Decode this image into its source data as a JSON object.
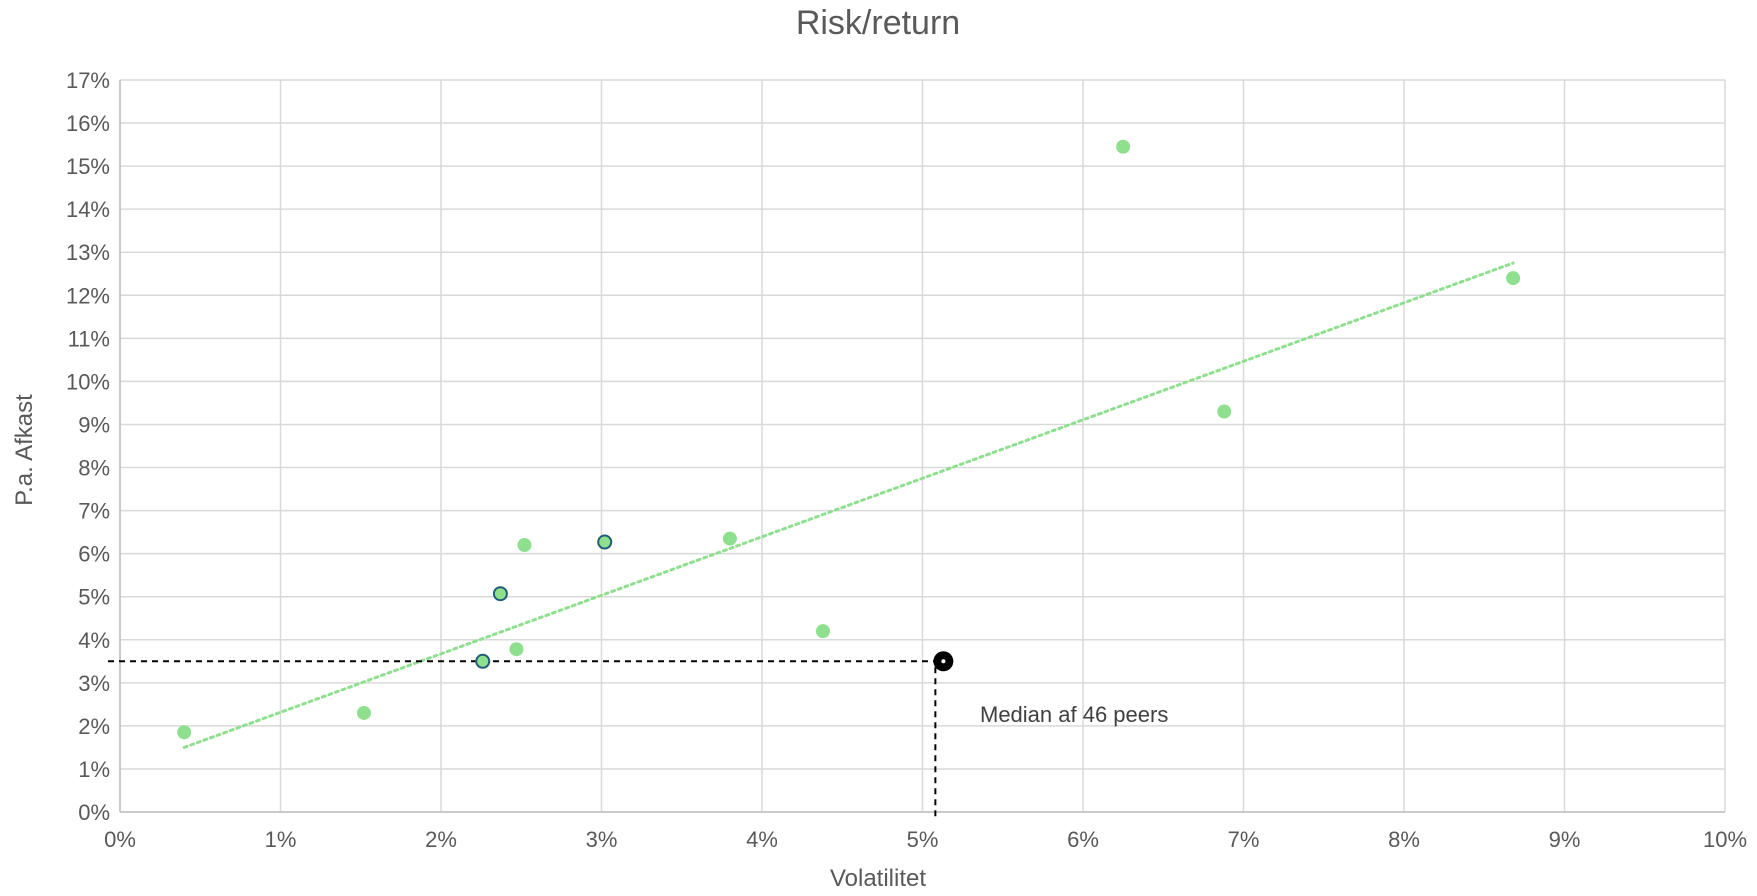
{
  "chart_data": {
    "type": "scatter",
    "title": "Risk/return",
    "xlabel": "Volatilitet",
    "ylabel": "P.a. Afkast",
    "xlim": [
      0,
      10
    ],
    "ylim": [
      0,
      17
    ],
    "x_ticks": [
      "0%",
      "1%",
      "2%",
      "3%",
      "4%",
      "5%",
      "6%",
      "7%",
      "8%",
      "9%",
      "10%"
    ],
    "y_ticks": [
      "0%",
      "1%",
      "2%",
      "3%",
      "4%",
      "5%",
      "6%",
      "7%",
      "8%",
      "9%",
      "10%",
      "11%",
      "12%",
      "13%",
      "14%",
      "15%",
      "16%",
      "17%"
    ],
    "grid": true,
    "legend": "none",
    "colors": {
      "points": "#8ee08e",
      "highlight_fill": "#8ee08e",
      "highlight_outline": "#1f5f7a",
      "trendline": "#8ee08e",
      "median": "#000000",
      "grid": "#d9d9d9"
    },
    "series": [
      {
        "points": [
          {
            "x": 0.4,
            "y": 1.85
          },
          {
            "x": 1.52,
            "y": 2.3
          },
          {
            "x": 2.47,
            "y": 3.78
          },
          {
            "x": 2.52,
            "y": 6.2
          },
          {
            "x": 3.8,
            "y": 6.35
          },
          {
            "x": 4.38,
            "y": 4.2
          },
          {
            "x": 6.25,
            "y": 15.45
          },
          {
            "x": 6.88,
            "y": 9.3
          },
          {
            "x": 8.68,
            "y": 12.4
          }
        ]
      },
      {
        "points": [
          {
            "x": 2.26,
            "y": 3.5
          },
          {
            "x": 2.37,
            "y": 5.07
          },
          {
            "x": 3.02,
            "y": 6.27
          }
        ]
      }
    ],
    "trendline": {
      "style": "dotted",
      "from": {
        "x": 0.4,
        "y": 1.5
      },
      "to": {
        "x": 8.68,
        "y": 12.75
      }
    },
    "median": {
      "x": 5.13,
      "y": 3.5,
      "label": "Median af 46 peers"
    }
  }
}
